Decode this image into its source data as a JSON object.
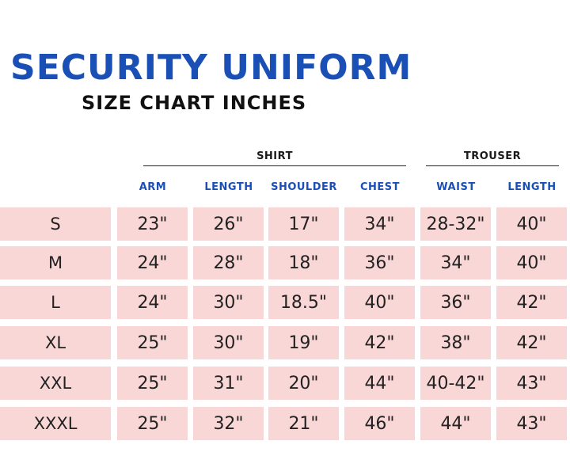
{
  "header": {
    "title": "SECURITY UNIFORM",
    "subtitle": "SIZE CHART INCHES"
  },
  "groups": {
    "shirt": "SHIRT",
    "trouser": "TROUSER"
  },
  "columns": [
    "ARM",
    "LENGTH",
    "SHOULDER",
    "CHEST",
    "WAIST",
    "LENGTH"
  ],
  "rows": [
    {
      "size": "S",
      "values": [
        "23\"",
        "26\"",
        "17\"",
        "34\"",
        "28-32\"",
        "40\""
      ]
    },
    {
      "size": "M",
      "values": [
        "24\"",
        "28\"",
        "18\"",
        "36\"",
        "34\"",
        "40\""
      ]
    },
    {
      "size": "L",
      "values": [
        "24\"",
        "30\"",
        "18.5\"",
        "40\"",
        "36\"",
        "42\""
      ]
    },
    {
      "size": "XL",
      "values": [
        "25\"",
        "30\"",
        "19\"",
        "42\"",
        "38\"",
        "42\""
      ]
    },
    {
      "size": "XXL",
      "values": [
        "25\"",
        "31\"",
        "20\"",
        "44\"",
        "40-42\"",
        "43\""
      ]
    },
    {
      "size": "XXXL",
      "values": [
        "25\"",
        "32\"",
        "21\"",
        "46\"",
        "44\"",
        "43\""
      ]
    }
  ],
  "colors": {
    "title": "#1a4fb5",
    "column_header": "#1a4fb5",
    "cell_background": "#fad7d7",
    "text": "#222222"
  }
}
